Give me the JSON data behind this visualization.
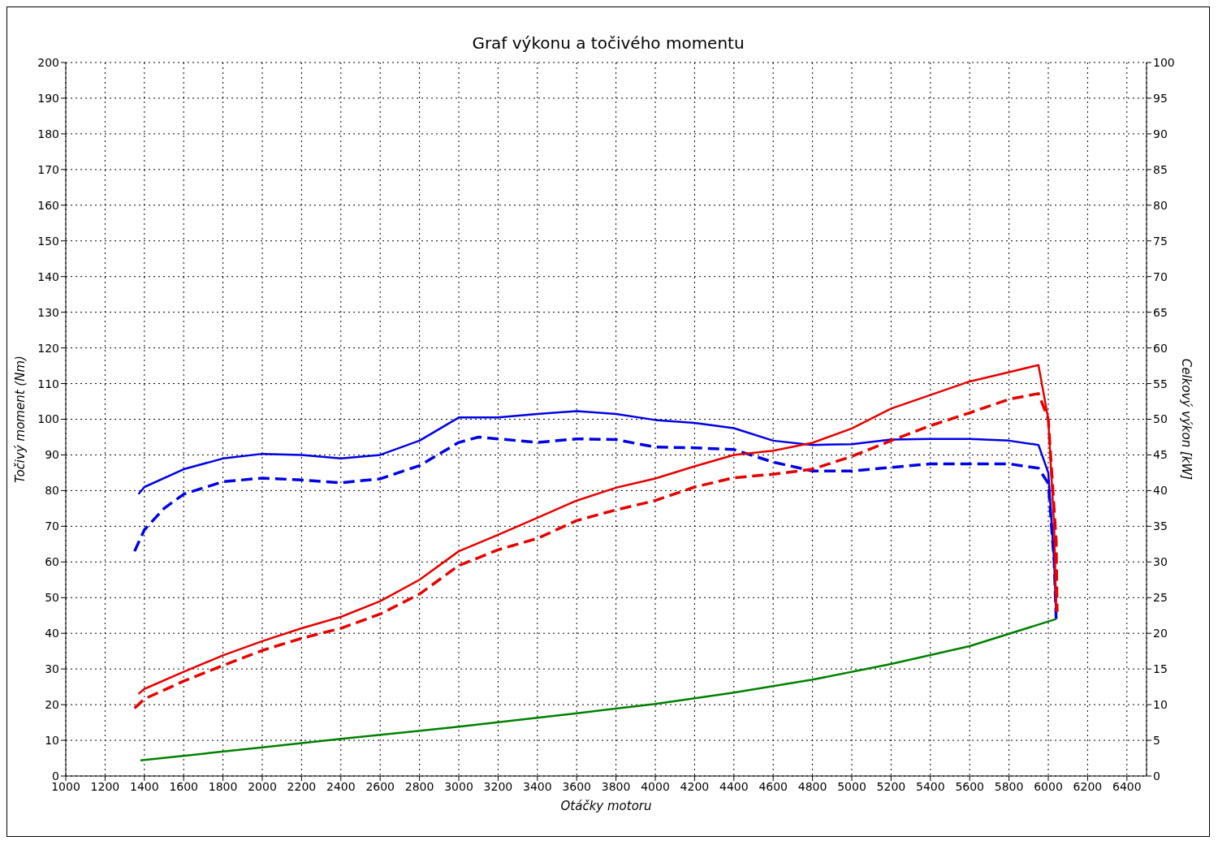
{
  "chart_data": {
    "type": "line",
    "title": "Graf výkonu a točivého momentu",
    "xlabel": "Otáčky motoru",
    "ylabel": "Točivý moment (Nm)",
    "y2label": "Celkový výkon [kW]",
    "xlim": [
      1000,
      6500
    ],
    "xticks": [
      1000,
      1200,
      1400,
      1600,
      1800,
      2000,
      2200,
      2400,
      2600,
      2800,
      3000,
      3200,
      3400,
      3600,
      3800,
      4000,
      4200,
      4400,
      4600,
      4800,
      5000,
      5200,
      5400,
      5600,
      5800,
      6000,
      6200,
      6400
    ],
    "ylim": [
      0,
      200
    ],
    "yticks": [
      0,
      10,
      20,
      30,
      40,
      50,
      60,
      70,
      80,
      90,
      100,
      110,
      120,
      130,
      140,
      150,
      160,
      170,
      180,
      190,
      200
    ],
    "y2lim": [
      0,
      100
    ],
    "y2ticks": [
      0,
      5,
      10,
      15,
      20,
      25,
      30,
      35,
      40,
      45,
      50,
      55,
      60,
      65,
      70,
      75,
      80,
      85,
      90,
      95,
      100
    ],
    "grid": true,
    "marker": "none",
    "legend": false,
    "series": [
      {
        "color": "#0000e6",
        "line_style": "solid",
        "axis": "y",
        "x": [
          1370,
          1400,
          1600,
          1800,
          2000,
          2200,
          2400,
          2600,
          2800,
          3000,
          3200,
          3400,
          3600,
          3800,
          4000,
          4200,
          4400,
          4600,
          4800,
          5000,
          5200,
          5400,
          5600,
          5800,
          5950,
          6000,
          6030,
          6040
        ],
        "values": [
          79,
          81,
          86,
          89,
          90.3,
          90,
          89,
          90,
          94,
          100.5,
          100.5,
          101.5,
          102.3,
          101.5,
          99.8,
          99,
          97.5,
          94,
          92.8,
          93,
          94.3,
          94.5,
          94.5,
          94,
          92.8,
          85,
          60,
          45
        ]
      },
      {
        "color": "#0000e6",
        "line_style": "dashed",
        "axis": "y",
        "x": [
          1350,
          1400,
          1500,
          1600,
          1800,
          2000,
          2200,
          2400,
          2600,
          2800,
          3000,
          3100,
          3200,
          3400,
          3600,
          3800,
          4000,
          4200,
          4400,
          4600,
          4800,
          5000,
          5200,
          5400,
          5600,
          5800,
          5950,
          6000,
          6030,
          6040
        ],
        "values": [
          63,
          69,
          75,
          79,
          82.5,
          83.5,
          83,
          82.2,
          83.3,
          87,
          93.5,
          95,
          94.5,
          93.5,
          94.5,
          94.3,
          92.2,
          92,
          91.5,
          88,
          85.5,
          85.5,
          86.5,
          87.5,
          87.5,
          87.5,
          86.3,
          82,
          60,
          44
        ]
      },
      {
        "color": "#e60000",
        "line_style": "solid",
        "axis": "y2",
        "x": [
          1370,
          1400,
          1600,
          1800,
          2000,
          2200,
          2400,
          2600,
          2800,
          3000,
          3200,
          3400,
          3600,
          3800,
          4000,
          4200,
          4400,
          4600,
          4800,
          5000,
          5200,
          5400,
          5600,
          5800,
          5950,
          6000,
          6030,
          6040
        ],
        "values": [
          11.5,
          12.2,
          14.6,
          16.9,
          18.9,
          20.7,
          22.3,
          24.5,
          27.5,
          31.5,
          33.8,
          36.2,
          38.6,
          40.4,
          41.7,
          43.4,
          45,
          45.6,
          46.7,
          48.7,
          51.5,
          53.4,
          55.3,
          56.6,
          57.6,
          50,
          35,
          23
        ]
      },
      {
        "color": "#e60000",
        "line_style": "dashed",
        "axis": "y2",
        "x": [
          1350,
          1400,
          1600,
          1800,
          2000,
          2200,
          2400,
          2600,
          2800,
          3000,
          3200,
          3400,
          3600,
          3800,
          4000,
          4200,
          4400,
          4600,
          4800,
          5000,
          5200,
          5400,
          5600,
          5800,
          5950,
          6000,
          6040,
          6045
        ],
        "values": [
          9.5,
          10.8,
          13.3,
          15.5,
          17.6,
          19.3,
          20.7,
          22.7,
          25.5,
          29.5,
          31.7,
          33.3,
          35.8,
          37.3,
          38.6,
          40.5,
          41.8,
          42.3,
          43,
          44.8,
          47,
          49.1,
          50.9,
          52.8,
          53.6,
          50,
          33,
          23
        ]
      },
      {
        "color": "#008000",
        "line_style": "solid",
        "axis": "y2",
        "x": [
          1380,
          2000,
          2400,
          3000,
          3600,
          4000,
          4400,
          4800,
          5200,
          5600,
          6040
        ],
        "values": [
          2.2,
          4,
          5.2,
          6.9,
          8.8,
          10.1,
          11.7,
          13.5,
          15.7,
          18.2,
          22
        ]
      }
    ]
  }
}
